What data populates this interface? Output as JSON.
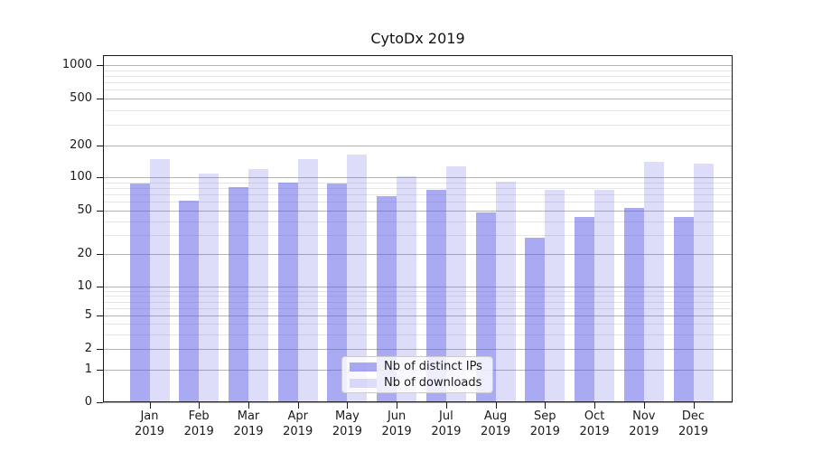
{
  "chart_data": {
    "type": "bar",
    "title": "CytoDx 2019",
    "x_categories": [
      "Jan",
      "Feb",
      "Mar",
      "Apr",
      "May",
      "Jun",
      "Jul",
      "Aug",
      "Sep",
      "Oct",
      "Nov",
      "Dec"
    ],
    "x_year": "2019",
    "series": [
      {
        "name": "Nb of distinct IPs",
        "color": "rgba(85,85,232,0.5)",
        "values": [
          88,
          61,
          81,
          89,
          88,
          67,
          77,
          48,
          28,
          44,
          53,
          44
        ]
      },
      {
        "name": "Nb of downloads",
        "color": "rgba(85,85,232,0.2)",
        "values": [
          150,
          108,
          119,
          150,
          163,
          102,
          128,
          91,
          77,
          77,
          139,
          134
        ]
      }
    ],
    "yscale": "symlog",
    "yticks": [
      0,
      1,
      2,
      5,
      10,
      20,
      50,
      100,
      200,
      500,
      1000
    ],
    "y_minor_ticks": [
      3,
      4,
      6,
      7,
      8,
      9,
      30,
      40,
      60,
      70,
      80,
      90,
      300,
      400,
      600,
      700,
      800,
      900
    ],
    "ylim": [
      0,
      1300
    ],
    "xlabel": "",
    "ylabel": "",
    "grid": true,
    "legend_position": "lower center"
  },
  "colors": {
    "grid_major": "#b4b4b4",
    "grid_minor": "#e6e6e6",
    "spine": "#1a1a1a",
    "text": "#1a1a1a",
    "legend_border": "#cccccc",
    "bar_base": "#5555e8"
  }
}
